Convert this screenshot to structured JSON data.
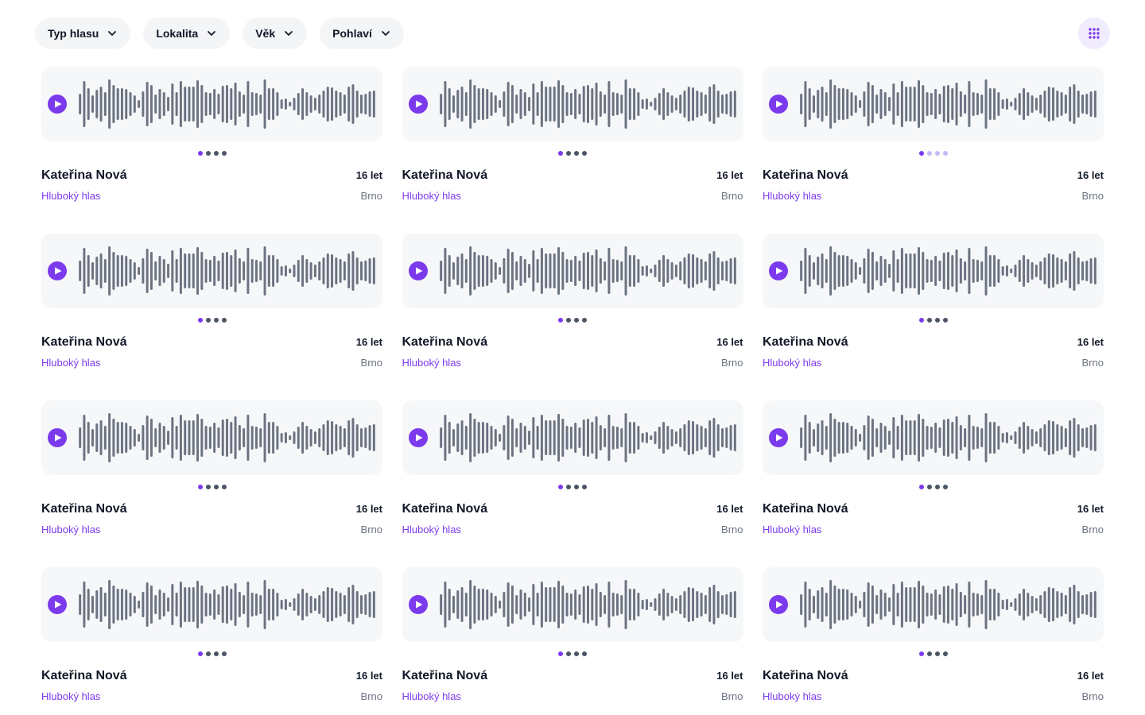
{
  "filters": [
    {
      "label": "Typ hlasu",
      "icon": "chevron-down-icon"
    },
    {
      "label": "Lokalita",
      "icon": "chevron-down-icon"
    },
    {
      "label": "Věk",
      "icon": "chevron-down-icon"
    },
    {
      "label": "Pohlaví",
      "icon": "chevron-down-icon"
    }
  ],
  "view_toggle": {
    "icon": "grid-view-icon"
  },
  "colors": {
    "accent": "#7c3aed",
    "wave": "#6b7280",
    "card_bg": "#f6f7f9"
  },
  "cards": [
    {
      "name": "Kateřina Nová",
      "age": "16 let",
      "voice_type": "Hluboký hlas",
      "city": "Brno",
      "sample_count": 4,
      "active_sample": 1
    },
    {
      "name": "Kateřina Nová",
      "age": "16 let",
      "voice_type": "Hluboký hlas",
      "city": "Brno",
      "sample_count": 4,
      "active_sample": 1
    },
    {
      "name": "Kateřina Nová",
      "age": "16 let",
      "voice_type": "Hluboký hlas",
      "city": "Brno",
      "sample_count": 4,
      "active_sample": 1
    },
    {
      "name": "Kateřina Nová",
      "age": "16 let",
      "voice_type": "Hluboký hlas",
      "city": "Brno",
      "sample_count": 4,
      "active_sample": 1
    },
    {
      "name": "Kateřina Nová",
      "age": "16 let",
      "voice_type": "Hluboký hlas",
      "city": "Brno",
      "sample_count": 4,
      "active_sample": 1
    },
    {
      "name": "Kateřina Nová",
      "age": "16 let",
      "voice_type": "Hluboký hlas",
      "city": "Brno",
      "sample_count": 4,
      "active_sample": 1
    },
    {
      "name": "Kateřina Nová",
      "age": "16 let",
      "voice_type": "Hluboký hlas",
      "city": "Brno",
      "sample_count": 4,
      "active_sample": 1
    },
    {
      "name": "Kateřina Nová",
      "age": "16 let",
      "voice_type": "Hluboký hlas",
      "city": "Brno",
      "sample_count": 4,
      "active_sample": 1
    },
    {
      "name": "Kateřina Nová",
      "age": "16 let",
      "voice_type": "Hluboký hlas",
      "city": "Brno",
      "sample_count": 4,
      "active_sample": 1
    },
    {
      "name": "Kateřina Nová",
      "age": "16 let",
      "voice_type": "Hluboký hlas",
      "city": "Brno",
      "sample_count": 4,
      "active_sample": 1
    },
    {
      "name": "Kateřina Nová",
      "age": "16 let",
      "voice_type": "Hluboký hlas",
      "city": "Brno",
      "sample_count": 4,
      "active_sample": 1
    },
    {
      "name": "Kateřina Nová",
      "age": "16 let",
      "voice_type": "Hluboký hlas",
      "city": "Brno",
      "sample_count": 4,
      "active_sample": 1
    }
  ]
}
